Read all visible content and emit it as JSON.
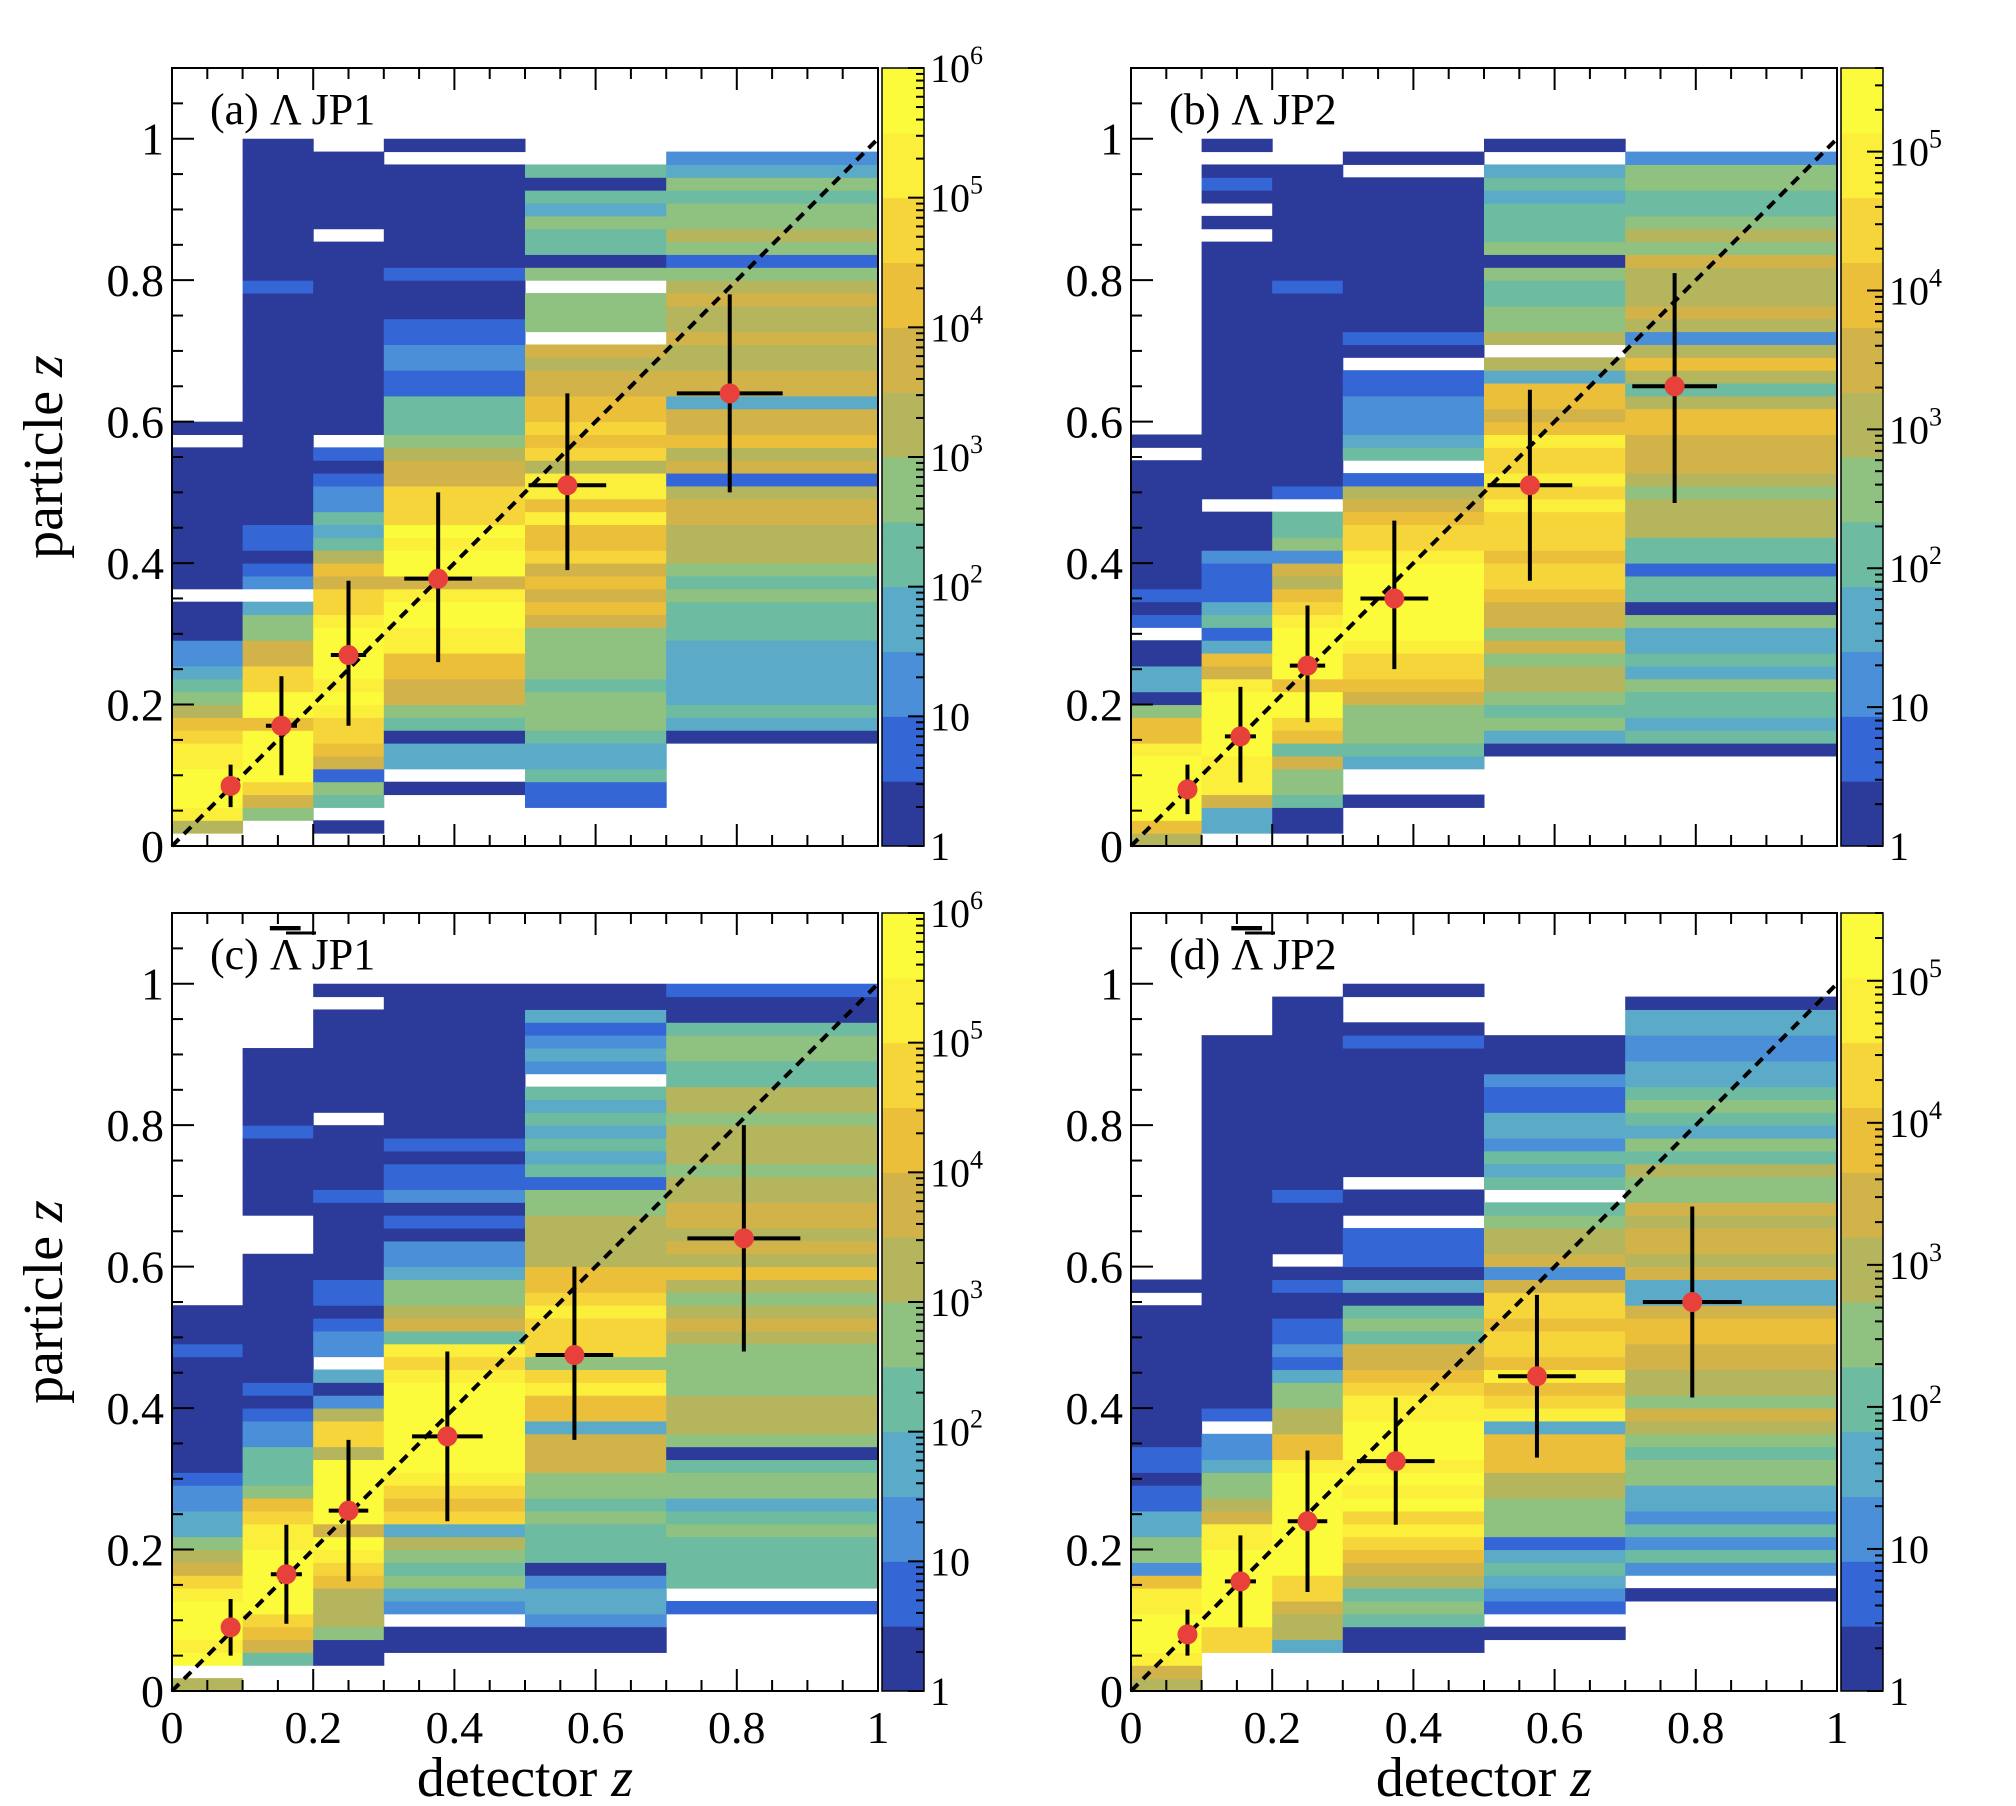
{
  "figure": {
    "xlabel_text": "detector",
    "ylabel_text": "particle",
    "axis_variable": "z",
    "colors": {
      "diagonal": "#000000",
      "marker": "#e8413b",
      "errorbar": "#000000",
      "frame": "#000000"
    },
    "colormap": [
      "#2c3b9a",
      "#3466d6",
      "#4a8fd8",
      "#5aaac8",
      "#6dbba0",
      "#8fc180",
      "#b5b55e",
      "#d2b34a",
      "#ecbf3a",
      "#f6d53a",
      "#fbef3c",
      "#fbfb3c"
    ]
  },
  "chart_data": [
    {
      "type": "heatmap",
      "panel": "a",
      "label_prefix": "(a)",
      "particle": "Λ",
      "antiparticle": false,
      "trigger": "JP1",
      "xlim": [
        0,
        1
      ],
      "ylim": [
        0,
        1.1
      ],
      "x_ticks": [
        "0",
        "0.2",
        "0.4",
        "0.6",
        "0.8",
        "1"
      ],
      "y_ticks": [
        "0",
        "0.2",
        "0.4",
        "0.6",
        "0.8",
        "1"
      ],
      "show_xlabel": false,
      "show_ylabel": true,
      "show_x_ticklabels": false,
      "colorbar": {
        "scale": "log",
        "range": [
          1,
          1000000
        ],
        "ticks": [
          {
            "b": "1",
            "e": ""
          },
          {
            "b": "10",
            "e": ""
          },
          {
            "b": "10",
            "e": "2"
          },
          {
            "b": "10",
            "e": "3"
          },
          {
            "b": "10",
            "e": "4"
          },
          {
            "b": "10",
            "e": "5"
          },
          {
            "b": "10",
            "e": "6"
          }
        ]
      },
      "x_bins": [
        0,
        0.1,
        0.2,
        0.3,
        0.5,
        0.7,
        1
      ],
      "columns": [
        {
          "ymin": 0.0,
          "ymax": 0.6,
          "peak": 0.09,
          "lo": 0.0,
          "hi": 1.0
        },
        {
          "ymin": 0.03,
          "ymax": 1.0,
          "peak": 0.16,
          "lo": 0.0,
          "hi": 1.0
        },
        {
          "ymin": 0.02,
          "ymax": 0.98,
          "peak": 0.26,
          "lo": 0.0,
          "hi": 1.0
        },
        {
          "ymin": 0.06,
          "ymax": 1.0,
          "peak": 0.38,
          "lo": 0.0,
          "hi": 1.0
        },
        {
          "ymin": 0.06,
          "ymax": 1.0,
          "peak": 0.5,
          "lo": 0.3,
          "hi": 0.8
        },
        {
          "ymin": 0.14,
          "ymax": 1.0,
          "peak": 0.62,
          "lo": 0.3,
          "hi": 0.6
        }
      ],
      "points": [
        {
          "x": 0.083,
          "y": 0.085,
          "xerr": 0.01,
          "ylo": 0.055,
          "yhi": 0.115
        },
        {
          "x": 0.155,
          "y": 0.17,
          "xerr": 0.022,
          "ylo": 0.1,
          "yhi": 0.24
        },
        {
          "x": 0.25,
          "y": 0.27,
          "xerr": 0.025,
          "ylo": 0.17,
          "yhi": 0.375
        },
        {
          "x": 0.377,
          "y": 0.378,
          "xerr": 0.048,
          "ylo": 0.26,
          "yhi": 0.5
        },
        {
          "x": 0.56,
          "y": 0.51,
          "xerr": 0.055,
          "ylo": 0.39,
          "yhi": 0.64
        },
        {
          "x": 0.79,
          "y": 0.64,
          "xerr": 0.075,
          "ylo": 0.5,
          "yhi": 0.78
        }
      ]
    },
    {
      "type": "heatmap",
      "panel": "b",
      "label_prefix": "(b)",
      "particle": "Λ",
      "antiparticle": false,
      "trigger": "JP2",
      "xlim": [
        0,
        1
      ],
      "ylim": [
        0,
        1.1
      ],
      "x_ticks": [
        "0",
        "0.2",
        "0.4",
        "0.6",
        "0.8",
        "1"
      ],
      "y_ticks": [
        "0",
        "0.2",
        "0.4",
        "0.6",
        "0.8",
        "1"
      ],
      "show_xlabel": false,
      "show_ylabel": false,
      "show_x_ticklabels": false,
      "colorbar": {
        "scale": "log",
        "range": [
          1,
          400000
        ],
        "ticks": [
          {
            "b": "1",
            "e": ""
          },
          {
            "b": "10",
            "e": ""
          },
          {
            "b": "10",
            "e": "2"
          },
          {
            "b": "10",
            "e": "3"
          },
          {
            "b": "10",
            "e": "4"
          },
          {
            "b": "10",
            "e": "5"
          }
        ]
      },
      "x_bins": [
        0,
        0.1,
        0.2,
        0.3,
        0.5,
        0.7,
        1
      ],
      "columns": [
        {
          "ymin": 0.0,
          "ymax": 0.58,
          "peak": 0.08,
          "lo": 0.0,
          "hi": 1.0
        },
        {
          "ymin": 0.02,
          "ymax": 1.0,
          "peak": 0.16,
          "lo": 0.0,
          "hi": 1.0
        },
        {
          "ymin": 0.02,
          "ymax": 0.96,
          "peak": 0.25,
          "lo": 0.0,
          "hi": 1.0
        },
        {
          "ymin": 0.06,
          "ymax": 0.98,
          "peak": 0.35,
          "lo": 0.0,
          "hi": 1.0
        },
        {
          "ymin": 0.12,
          "ymax": 1.0,
          "peak": 0.5,
          "lo": 0.3,
          "hi": 0.8
        },
        {
          "ymin": 0.12,
          "ymax": 1.0,
          "peak": 0.64,
          "lo": 0.3,
          "hi": 0.6
        }
      ],
      "points": [
        {
          "x": 0.08,
          "y": 0.08,
          "xerr": 0.01,
          "ylo": 0.045,
          "yhi": 0.115
        },
        {
          "x": 0.155,
          "y": 0.155,
          "xerr": 0.022,
          "ylo": 0.09,
          "yhi": 0.225
        },
        {
          "x": 0.25,
          "y": 0.255,
          "xerr": 0.025,
          "ylo": 0.175,
          "yhi": 0.34
        },
        {
          "x": 0.373,
          "y": 0.35,
          "xerr": 0.048,
          "ylo": 0.25,
          "yhi": 0.46
        },
        {
          "x": 0.565,
          "y": 0.51,
          "xerr": 0.06,
          "ylo": 0.375,
          "yhi": 0.645
        },
        {
          "x": 0.77,
          "y": 0.65,
          "xerr": 0.06,
          "ylo": 0.485,
          "yhi": 0.81
        }
      ]
    },
    {
      "type": "heatmap",
      "panel": "c",
      "label_prefix": "(c)",
      "particle": "Λ",
      "antiparticle": true,
      "trigger": "JP1",
      "xlim": [
        0,
        1
      ],
      "ylim": [
        0,
        1.1
      ],
      "x_ticks": [
        "0",
        "0.2",
        "0.4",
        "0.6",
        "0.8",
        "1"
      ],
      "y_ticks": [
        "0",
        "0.2",
        "0.4",
        "0.6",
        "0.8",
        "1"
      ],
      "show_xlabel": true,
      "show_ylabel": true,
      "show_x_ticklabels": true,
      "colorbar": {
        "scale": "log",
        "range": [
          1,
          1000000
        ],
        "ticks": [
          {
            "b": "1",
            "e": ""
          },
          {
            "b": "10",
            "e": ""
          },
          {
            "b": "10",
            "e": "2"
          },
          {
            "b": "10",
            "e": "3"
          },
          {
            "b": "10",
            "e": "4"
          },
          {
            "b": "10",
            "e": "5"
          },
          {
            "b": "10",
            "e": "6"
          }
        ]
      },
      "x_bins": [
        0,
        0.1,
        0.2,
        0.3,
        0.5,
        0.7,
        1
      ],
      "columns": [
        {
          "ymin": 0.0,
          "ymax": 0.58,
          "peak": 0.09,
          "lo": 0.0,
          "hi": 1.0
        },
        {
          "ymin": 0.02,
          "ymax": 0.94,
          "peak": 0.16,
          "lo": 0.0,
          "hi": 1.0
        },
        {
          "ymin": 0.04,
          "ymax": 1.0,
          "peak": 0.26,
          "lo": 0.0,
          "hi": 1.0
        },
        {
          "ymin": 0.06,
          "ymax": 1.0,
          "peak": 0.37,
          "lo": 0.0,
          "hi": 1.0
        },
        {
          "ymin": 0.06,
          "ymax": 1.0,
          "peak": 0.48,
          "lo": 0.2,
          "hi": 0.8
        },
        {
          "ymin": 0.1,
          "ymax": 1.0,
          "peak": 0.63,
          "lo": 0.3,
          "hi": 0.6
        }
      ],
      "points": [
        {
          "x": 0.083,
          "y": 0.09,
          "xerr": 0.01,
          "ylo": 0.05,
          "yhi": 0.13
        },
        {
          "x": 0.162,
          "y": 0.165,
          "xerr": 0.022,
          "ylo": 0.095,
          "yhi": 0.235
        },
        {
          "x": 0.25,
          "y": 0.255,
          "xerr": 0.028,
          "ylo": 0.155,
          "yhi": 0.355
        },
        {
          "x": 0.39,
          "y": 0.36,
          "xerr": 0.05,
          "ylo": 0.24,
          "yhi": 0.48
        },
        {
          "x": 0.57,
          "y": 0.475,
          "xerr": 0.055,
          "ylo": 0.355,
          "yhi": 0.6
        },
        {
          "x": 0.81,
          "y": 0.64,
          "xerr": 0.08,
          "ylo": 0.48,
          "yhi": 0.8
        }
      ]
    },
    {
      "type": "heatmap",
      "panel": "d",
      "label_prefix": "(d)",
      "particle": "Λ",
      "antiparticle": true,
      "trigger": "JP2",
      "xlim": [
        0,
        1
      ],
      "ylim": [
        0,
        1.1
      ],
      "x_ticks": [
        "0",
        "0.2",
        "0.4",
        "0.6",
        "0.8",
        "1"
      ],
      "y_ticks": [
        "0",
        "0.2",
        "0.4",
        "0.6",
        "0.8",
        "1"
      ],
      "show_xlabel": true,
      "show_ylabel": false,
      "show_x_ticklabels": true,
      "colorbar": {
        "scale": "log",
        "range": [
          1,
          300000
        ],
        "ticks": [
          {
            "b": "1",
            "e": ""
          },
          {
            "b": "10",
            "e": ""
          },
          {
            "b": "10",
            "e": "2"
          },
          {
            "b": "10",
            "e": "3"
          },
          {
            "b": "10",
            "e": "4"
          },
          {
            "b": "10",
            "e": "5"
          }
        ]
      },
      "x_bins": [
        0,
        0.1,
        0.2,
        0.3,
        0.5,
        0.7,
        1
      ],
      "columns": [
        {
          "ymin": 0.0,
          "ymax": 0.58,
          "peak": 0.08,
          "lo": 0.0,
          "hi": 1.0
        },
        {
          "ymin": 0.02,
          "ymax": 0.93,
          "peak": 0.15,
          "lo": 0.0,
          "hi": 1.0
        },
        {
          "ymin": 0.02,
          "ymax": 0.98,
          "peak": 0.24,
          "lo": 0.0,
          "hi": 1.0
        },
        {
          "ymin": 0.04,
          "ymax": 1.0,
          "peak": 0.32,
          "lo": 0.0,
          "hi": 1.0
        },
        {
          "ymin": 0.08,
          "ymax": 0.92,
          "peak": 0.45,
          "lo": 0.15,
          "hi": 0.8
        },
        {
          "ymin": 0.12,
          "ymax": 1.0,
          "peak": 0.55,
          "lo": 0.2,
          "hi": 0.65
        }
      ],
      "points": [
        {
          "x": 0.08,
          "y": 0.08,
          "xerr": 0.01,
          "ylo": 0.05,
          "yhi": 0.115
        },
        {
          "x": 0.155,
          "y": 0.155,
          "xerr": 0.022,
          "ylo": 0.09,
          "yhi": 0.22
        },
        {
          "x": 0.25,
          "y": 0.24,
          "xerr": 0.028,
          "ylo": 0.14,
          "yhi": 0.34
        },
        {
          "x": 0.375,
          "y": 0.325,
          "xerr": 0.055,
          "ylo": 0.235,
          "yhi": 0.415
        },
        {
          "x": 0.575,
          "y": 0.445,
          "xerr": 0.055,
          "ylo": 0.33,
          "yhi": 0.56
        },
        {
          "x": 0.795,
          "y": 0.55,
          "xerr": 0.07,
          "ylo": 0.415,
          "yhi": 0.685
        }
      ]
    }
  ]
}
